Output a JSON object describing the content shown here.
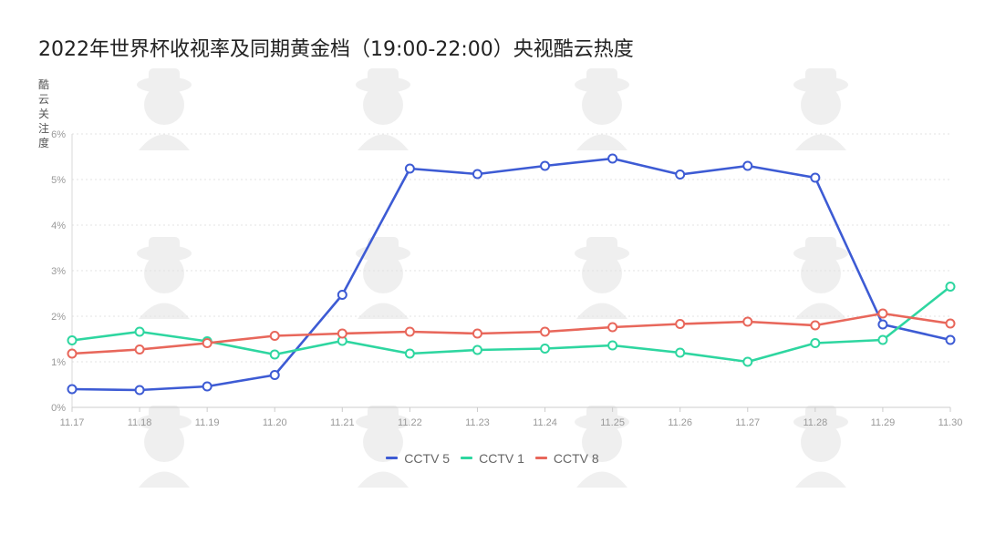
{
  "title": "2022年世界杯收视率及同期黄金档（19:00-22:00）央视酷云热度",
  "chart_data": {
    "type": "line",
    "title": "2022年世界杯收视率及同期黄金档（19:00-22:00）央视酷云热度",
    "ylabel": "酷云关注度",
    "xlabel": "",
    "x": [
      "11.17",
      "11.18",
      "11.19",
      "11.20",
      "11.21",
      "11.22",
      "11.23",
      "11.24",
      "11.25",
      "11.26",
      "11.27",
      "11.28",
      "11.29",
      "11.30"
    ],
    "y_ticks": [
      "0%",
      "1%",
      "2%",
      "3%",
      "4%",
      "5%",
      "6%"
    ],
    "ylim": [
      0,
      6
    ],
    "grid": true,
    "legend_position": "bottom",
    "series": [
      {
        "name": "CCTV 5",
        "color": "#3d5bd4",
        "values": [
          0.4,
          0.38,
          0.46,
          0.71,
          2.47,
          5.24,
          5.12,
          5.3,
          5.46,
          5.11,
          5.3,
          5.04,
          1.82,
          1.48
        ]
      },
      {
        "name": "CCTV 1",
        "color": "#2ed6a0",
        "values": [
          1.47,
          1.66,
          1.45,
          1.16,
          1.46,
          1.18,
          1.26,
          1.29,
          1.36,
          1.2,
          1.0,
          1.41,
          1.48,
          2.65
        ]
      },
      {
        "name": "CCTV 8",
        "color": "#e8675b",
        "values": [
          1.18,
          1.27,
          1.41,
          1.57,
          1.62,
          1.66,
          1.62,
          1.66,
          1.76,
          1.83,
          1.88,
          1.8,
          2.06,
          1.84
        ]
      }
    ]
  }
}
